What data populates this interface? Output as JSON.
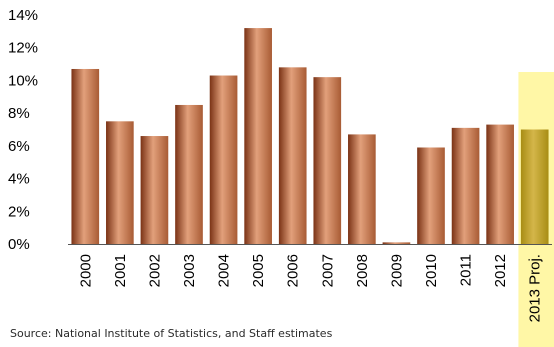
{
  "chart_data": {
    "type": "bar",
    "title": "",
    "xlabel": "",
    "ylabel": "",
    "ylim": [
      0,
      14
    ],
    "y_tick_step": 2,
    "y_ticks": [
      "0%",
      "2%",
      "4%",
      "6%",
      "8%",
      "10%",
      "12%",
      "14%"
    ],
    "grid": false,
    "categories": [
      "2000",
      "2001",
      "2002",
      "2003",
      "2004",
      "2005",
      "2006",
      "2007",
      "2008",
      "2009",
      "2010",
      "2011",
      "2012",
      "2013 Proj."
    ],
    "values": [
      10.7,
      7.5,
      6.6,
      8.5,
      10.3,
      13.2,
      10.8,
      10.2,
      6.7,
      0.1,
      5.9,
      7.1,
      7.3,
      7.0
    ],
    "highlight": {
      "category": "2013 Proj.",
      "color": "#fff7a6"
    },
    "colors": {
      "bar_left": "#7a3215",
      "bar_mid": "#e2a07b",
      "bar_right": "#a85b34",
      "projected_bar_light": "#d4b64a",
      "projected_bar_dark": "#a88d14",
      "axis": "#555555",
      "text": "#000000"
    }
  },
  "source": "Source: National Institute of Statistics, and Staff estimates"
}
